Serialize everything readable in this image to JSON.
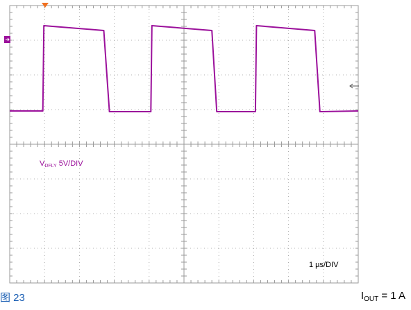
{
  "chart_data": {
    "type": "line",
    "title": "",
    "xlabel": "",
    "ylabel": "",
    "grid": true,
    "x_unit": "µs",
    "y_unit": "V",
    "x_divisions": 10,
    "y_divisions": 8,
    "xlim": [
      0,
      10
    ],
    "ylim": [
      -20,
      20
    ],
    "series": [
      {
        "name": "V_DFLY",
        "color": "#9b109b",
        "x": [
          0,
          0.95,
          0.98,
          2.7,
          2.86,
          2.9,
          4.05,
          4.08,
          5.8,
          5.94,
          5.98,
          7.05,
          7.08,
          8.75,
          8.9,
          8.94,
          10
        ],
        "y": [
          4.8,
          4.8,
          17.1,
          16.4,
          4.7,
          4.7,
          4.7,
          17.1,
          16.4,
          4.7,
          4.7,
          4.7,
          17.1,
          16.4,
          4.7,
          4.7,
          4.8
        ]
      }
    ],
    "channel_label": {
      "main": "V",
      "sub": "DFLY",
      "scale": "5V/DIV"
    },
    "time_label": "1 µs/DIV"
  },
  "colors": {
    "trace": "#9b109b",
    "grid": "#9a9a9a",
    "trigger": "#f07020",
    "caption": "#1a5fb4"
  },
  "figure_caption": "图 23",
  "condition": {
    "main": "I",
    "sub": "OUT",
    "rest": " = 1 A"
  }
}
